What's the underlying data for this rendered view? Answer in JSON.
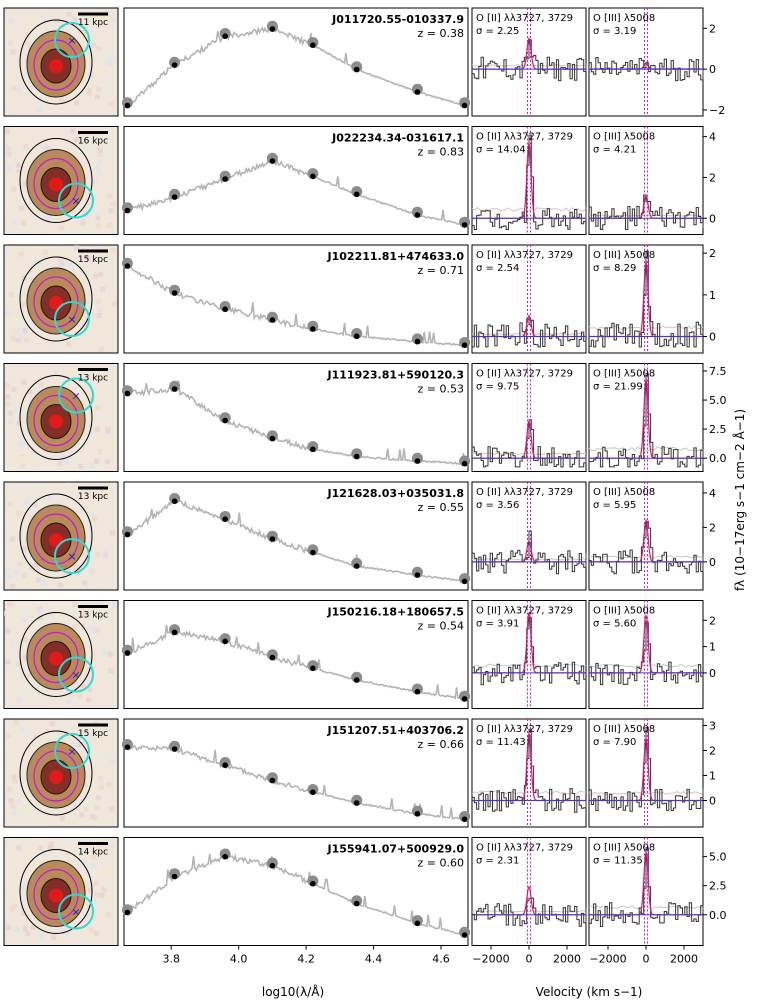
{
  "chart_data": {
    "type": "line",
    "sed_xaxis": {
      "label": "log10(λ/Å)",
      "ticks": [
        "3.8",
        "4.0",
        "4.2",
        "4.4",
        "4.6"
      ],
      "range": [
        3.66,
        4.68
      ]
    },
    "vel_xaxis": {
      "label": "Velocity (km s−1)",
      "ticks": [
        "−2000",
        "0",
        "2000"
      ],
      "range": [
        -3000,
        3000
      ]
    },
    "ylabel": "fλ (10−17erg s−1 cm−2 Å−1)",
    "line_labels": {
      "oii": "O [II] λλ3727, 3729",
      "oiii": "O [III] λ5008"
    },
    "objects": [
      {
        "id": "J011720.55-010337.9",
        "z": "z = 0.38",
        "scale": "11 kpc",
        "sigma_oii": "σ = 2.25",
        "sigma_oiii": "σ = 3.19",
        "yticks": [
          "2",
          "0",
          "−2"
        ],
        "ylim": [
          -2.1,
          2.8
        ],
        "sed_points": [
          [
            3.67,
            0.05
          ],
          [
            3.81,
            0.5
          ],
          [
            3.96,
            0.82
          ],
          [
            4.1,
            0.9
          ],
          [
            4.22,
            0.72
          ],
          [
            4.35,
            0.45
          ],
          [
            4.53,
            0.2
          ],
          [
            4.67,
            0.05
          ]
        ],
        "oii_peak": 1.5,
        "oiii_peak": 0.3
      },
      {
        "id": "J022234.34-031617.1",
        "z": "z = 0.83",
        "scale": "16 kpc",
        "sigma_oii": "σ = 14.04",
        "sigma_oiii": "σ = 4.21",
        "yticks": [
          "4",
          "2",
          "0"
        ],
        "ylim": [
          -0.6,
          4.3
        ],
        "sed_points": [
          [
            3.67,
            0.2
          ],
          [
            3.81,
            0.35
          ],
          [
            3.96,
            0.55
          ],
          [
            4.1,
            0.75
          ],
          [
            4.22,
            0.58
          ],
          [
            4.35,
            0.38
          ],
          [
            4.53,
            0.15
          ],
          [
            4.67,
            0.04
          ]
        ],
        "oii_peak": 3.7,
        "oiii_peak": 1.1
      },
      {
        "id": "J102211.81+474633.0",
        "z": "z = 0.71",
        "scale": "15 kpc",
        "sigma_oii": "σ = 2.54",
        "sigma_oiii": "σ = 8.29",
        "yticks": [
          "2",
          "1",
          "0"
        ],
        "ylim": [
          -0.3,
          2.1
        ],
        "sed_points": [
          [
            3.67,
            0.9
          ],
          [
            3.81,
            0.6
          ],
          [
            3.96,
            0.42
          ],
          [
            4.1,
            0.3
          ],
          [
            4.22,
            0.2
          ],
          [
            4.35,
            0.12
          ],
          [
            4.53,
            0.06
          ],
          [
            4.67,
            0.02
          ]
        ],
        "oii_peak": 0.5,
        "oiii_peak": 1.8
      },
      {
        "id": "J111923.81+590120.3",
        "z": "z = 0.53",
        "scale": "13 kpc",
        "sigma_oii": "σ = 9.75",
        "sigma_oiii": "σ = 21.99",
        "yticks": [
          "7.5",
          "5.0",
          "2.5",
          "0.0"
        ],
        "ylim": [
          -0.8,
          7.8
        ],
        "sed_points": [
          [
            3.67,
            0.8
          ],
          [
            3.81,
            0.85
          ],
          [
            3.96,
            0.5
          ],
          [
            4.1,
            0.3
          ],
          [
            4.22,
            0.18
          ],
          [
            4.35,
            0.1
          ],
          [
            4.53,
            0.05
          ],
          [
            4.67,
            0.02
          ]
        ],
        "oii_peak": 3.2,
        "oiii_peak": 6.8
      },
      {
        "id": "J121628.03+035031.8",
        "z": "z = 0.55",
        "scale": "13 kpc",
        "sigma_oii": "σ = 3.56",
        "sigma_oiii": "σ = 5.95",
        "yticks": [
          "4",
          "2",
          "0"
        ],
        "ylim": [
          -1.4,
          4.4
        ],
        "sed_points": [
          [
            3.67,
            0.55
          ],
          [
            3.81,
            0.92
          ],
          [
            3.96,
            0.72
          ],
          [
            4.1,
            0.5
          ],
          [
            4.22,
            0.35
          ],
          [
            4.35,
            0.2
          ],
          [
            4.53,
            0.1
          ],
          [
            4.67,
            0.03
          ]
        ],
        "oii_peak": 1.2,
        "oiii_peak": 2.4
      },
      {
        "id": "J150216.18+180657.5",
        "z": "z = 0.54",
        "scale": "13 kpc",
        "sigma_oii": "σ = 3.91",
        "sigma_oiii": "σ = 5.60",
        "yticks": [
          "2",
          "1",
          "0"
        ],
        "ylim": [
          -1.2,
          2.6
        ],
        "sed_points": [
          [
            3.67,
            0.55
          ],
          [
            3.81,
            0.78
          ],
          [
            3.96,
            0.68
          ],
          [
            4.1,
            0.5
          ],
          [
            4.22,
            0.38
          ],
          [
            4.35,
            0.25
          ],
          [
            4.53,
            0.12
          ],
          [
            4.67,
            0.04
          ]
        ],
        "oii_peak": 2.3,
        "oiii_peak": 2.2
      },
      {
        "id": "J151207.51+403706.2",
        "z": "z = 0.66",
        "scale": "15 kpc",
        "sigma_oii": "σ = 11.43",
        "sigma_oiii": "σ = 7.90",
        "yticks": [
          "3",
          "2",
          "1",
          "0"
        ],
        "ylim": [
          -0.9,
          3.1
        ],
        "sed_points": [
          [
            3.67,
            0.82
          ],
          [
            3.81,
            0.8
          ],
          [
            3.96,
            0.62
          ],
          [
            4.1,
            0.45
          ],
          [
            4.22,
            0.32
          ],
          [
            4.35,
            0.2
          ],
          [
            4.53,
            0.08
          ],
          [
            4.67,
            0.02
          ]
        ],
        "oii_peak": 2.7,
        "oiii_peak": 2.5
      },
      {
        "id": "J155941.07+500929.0",
        "z": "z = 0.60",
        "scale": "14 kpc",
        "sigma_oii": "σ = 2.31",
        "sigma_oiii": "σ = 11.35",
        "yticks": [
          "5.0",
          "2.5",
          "0.0"
        ],
        "ylim": [
          -2.3,
          6.3
        ],
        "sed_points": [
          [
            3.67,
            0.3
          ],
          [
            3.81,
            0.7
          ],
          [
            3.96,
            0.92
          ],
          [
            4.1,
            0.82
          ],
          [
            4.22,
            0.62
          ],
          [
            4.35,
            0.4
          ],
          [
            4.53,
            0.18
          ],
          [
            4.67,
            0.05
          ]
        ],
        "oii_peak": 2.4,
        "oiii_peak": 5.4
      }
    ]
  }
}
